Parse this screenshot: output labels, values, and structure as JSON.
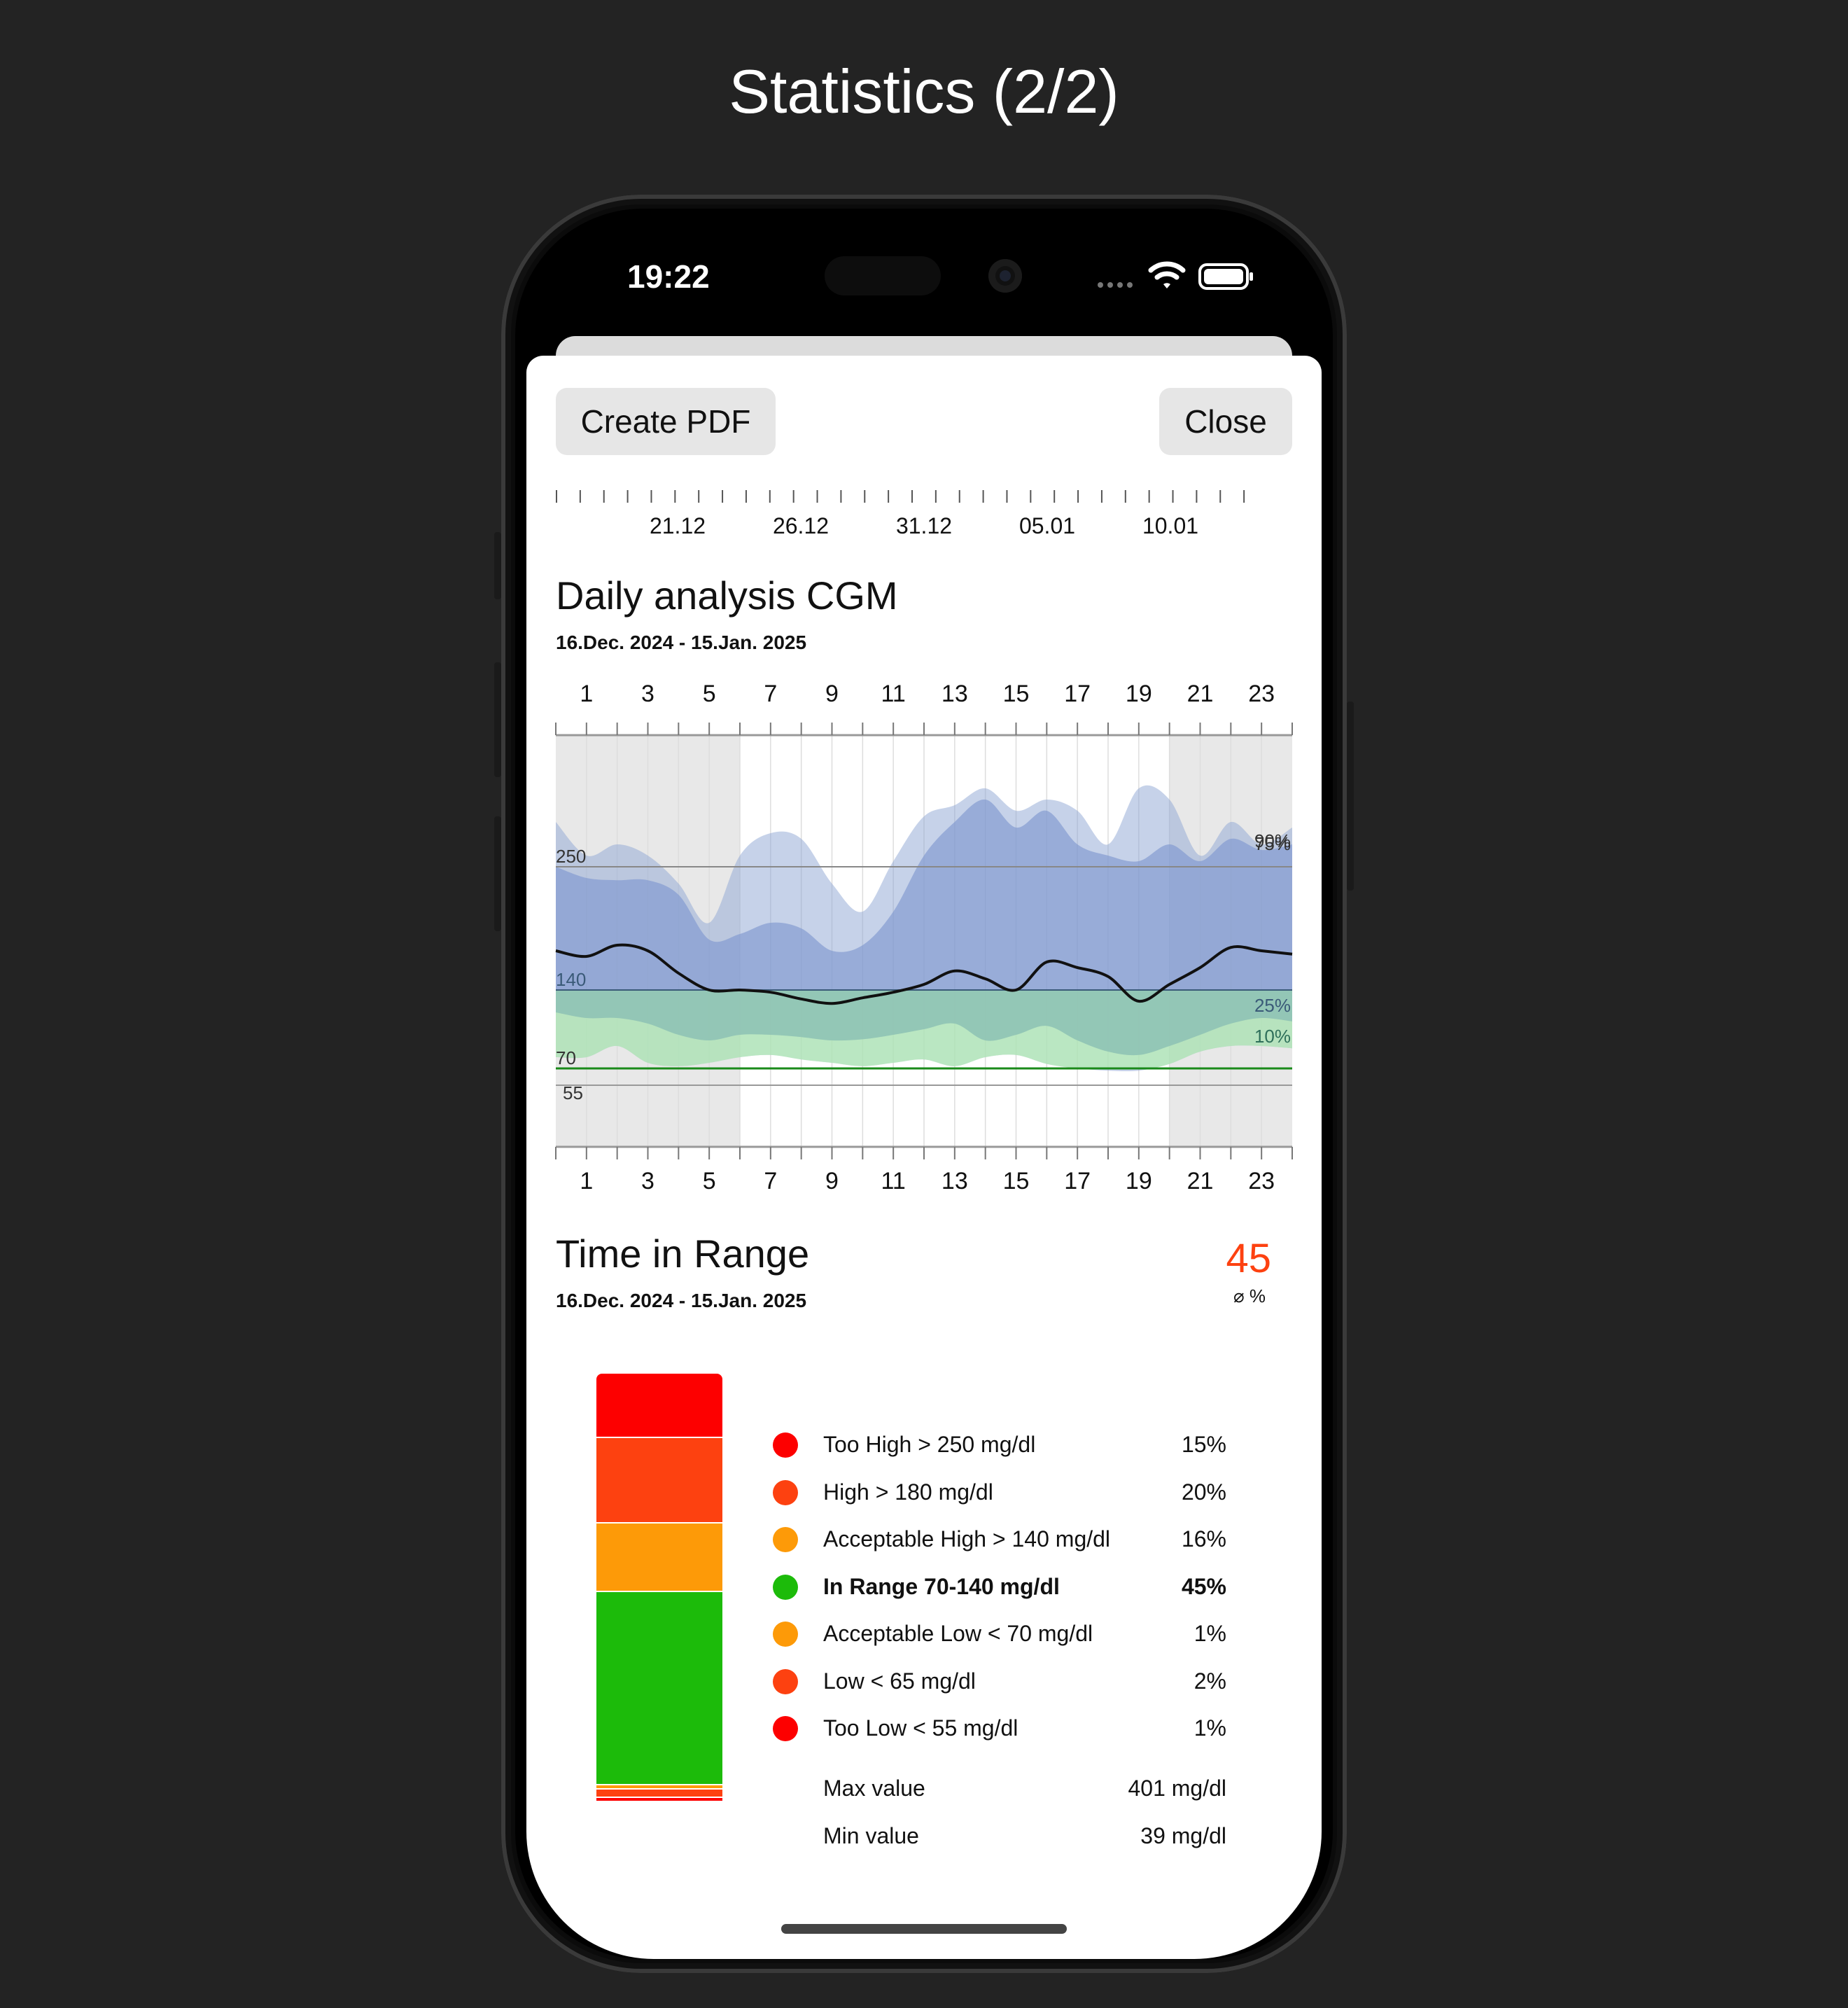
{
  "page": {
    "title": "Statistics (2/2)"
  },
  "status_bar": {
    "time": "19:22",
    "icons": [
      "signal-dots-icon",
      "wifi-icon",
      "battery-icon"
    ]
  },
  "toolbar": {
    "create_pdf_label": "Create PDF",
    "close_label": "Close"
  },
  "date_axis": {
    "labels": [
      "21.12",
      "26.12",
      "31.12",
      "05.01",
      "10.01"
    ]
  },
  "daily_analysis": {
    "title": "Daily analysis CGM",
    "date_range": "16.Dec. 2024 - 15.Jan. 2025",
    "hour_labels": [
      "1",
      "3",
      "5",
      "7",
      "9",
      "11",
      "13",
      "15",
      "17",
      "19",
      "21",
      "23"
    ],
    "threshold_labels": [
      "250",
      "140",
      "70",
      "55"
    ],
    "percentile_labels": [
      "90%",
      "75%",
      "25%",
      "10%"
    ]
  },
  "chart_data": {
    "type": "area",
    "title": "Daily analysis CGM",
    "xlabel": "",
    "ylabel": "",
    "x": [
      0,
      1,
      2,
      3,
      4,
      5,
      6,
      7,
      8,
      9,
      10,
      11,
      12,
      13,
      14,
      15,
      16,
      17,
      18,
      19,
      20,
      21,
      22,
      23,
      24
    ],
    "xlim": [
      0,
      24
    ],
    "ylim": [
      0,
      360
    ],
    "thresholds": [
      250,
      140,
      70,
      55
    ],
    "night_shading_hours": [
      [
        0,
        6
      ],
      [
        20,
        24
      ]
    ],
    "series": [
      {
        "name": "90%",
        "values": [
          290,
          260,
          270,
          260,
          235,
          200,
          260,
          280,
          275,
          235,
          210,
          255,
          295,
          305,
          320,
          300,
          310,
          300,
          270,
          320,
          310,
          260,
          290,
          270,
          285
        ]
      },
      {
        "name": "75%",
        "values": [
          250,
          240,
          238,
          238,
          225,
          185,
          190,
          200,
          195,
          175,
          180,
          210,
          260,
          290,
          310,
          285,
          300,
          270,
          260,
          255,
          270,
          255,
          275,
          265,
          270
        ]
      },
      {
        "name": "median",
        "values": [
          175,
          170,
          180,
          175,
          155,
          140,
          140,
          138,
          132,
          128,
          133,
          138,
          145,
          157,
          150,
          140,
          165,
          160,
          152,
          130,
          145,
          160,
          178,
          175,
          172
        ]
      },
      {
        "name": "25%",
        "values": [
          120,
          115,
          115,
          110,
          100,
          95,
          100,
          100,
          98,
          95,
          96,
          100,
          105,
          110,
          95,
          100,
          108,
          95,
          85,
          82,
          90,
          100,
          110,
          115,
          112
        ]
      },
      {
        "name": "10%",
        "values": [
          80,
          80,
          90,
          75,
          72,
          75,
          80,
          82,
          78,
          75,
          72,
          75,
          78,
          72,
          80,
          82,
          74,
          70,
          68,
          68,
          74,
          85,
          90,
          90,
          88
        ]
      }
    ]
  },
  "time_in_range": {
    "title": "Time in Range",
    "date_range": "16.Dec. 2024 - 15.Jan. 2025",
    "average_value": "45",
    "average_unit": "⌀ %",
    "categories": [
      {
        "label": "Too High > 250 mg/dl",
        "value": "15%",
        "percent": 15,
        "color": "#fd0000",
        "bold": false
      },
      {
        "label": "High > 180 mg/dl",
        "value": "20%",
        "percent": 20,
        "color": "#fd4110",
        "bold": false
      },
      {
        "label": "Acceptable High > 140 mg/dl",
        "value": "16%",
        "percent": 16,
        "color": "#fd9a08",
        "bold": false
      },
      {
        "label": "In Range 70-140 mg/dl",
        "value": "45%",
        "percent": 45,
        "color": "#1cbb0a",
        "bold": true
      },
      {
        "label": "Acceptable Low < 70 mg/dl",
        "value": "1%",
        "percent": 1,
        "color": "#fd9a08",
        "bold": false
      },
      {
        "label": "Low < 65 mg/dl",
        "value": "2%",
        "percent": 2,
        "color": "#fd4110",
        "bold": false
      },
      {
        "label": "Too Low < 55 mg/dl",
        "value": "1%",
        "percent": 1,
        "color": "#fd0000",
        "bold": false
      }
    ],
    "max_label": "Max value",
    "max_value": "401 mg/dl",
    "min_label": "Min value",
    "min_value": "39 mg/dl"
  }
}
